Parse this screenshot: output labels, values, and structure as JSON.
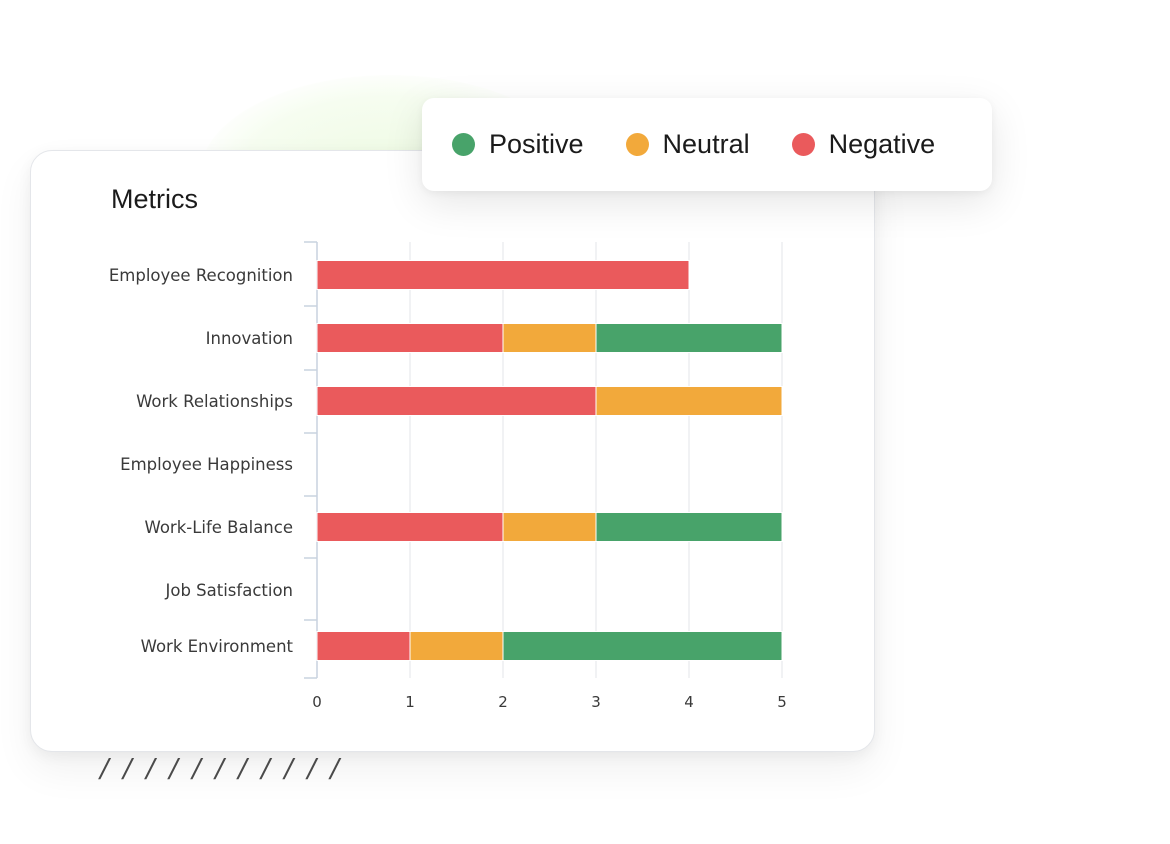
{
  "chart_data": {
    "type": "bar",
    "orientation": "horizontal",
    "stacked": true,
    "title": "Metrics",
    "categories": [
      "Employee Recognition",
      "Innovation",
      "Work Relationships",
      "Employee Happiness",
      "Work-Life Balance",
      "Job Satisfaction",
      "Work Environment"
    ],
    "series": [
      {
        "name": "Negative",
        "color": "#ea5a5c",
        "values": [
          4,
          2,
          3,
          0,
          2,
          0,
          1
        ]
      },
      {
        "name": "Neutral",
        "color": "#f2a93b",
        "values": [
          0,
          1,
          2,
          0,
          1,
          0,
          1
        ]
      },
      {
        "name": "Positive",
        "color": "#48a36a",
        "values": [
          0,
          2,
          0,
          0,
          2,
          0,
          3
        ]
      }
    ],
    "xlim": [
      0,
      5
    ],
    "xticks": [
      "0",
      "1",
      "2",
      "3",
      "4",
      "5"
    ],
    "grid": true,
    "legend_position": "top-right",
    "legend_order": [
      "Positive",
      "Neutral",
      "Negative"
    ]
  },
  "decoration": {
    "hatch": "/ / / / / / / / / / /"
  }
}
